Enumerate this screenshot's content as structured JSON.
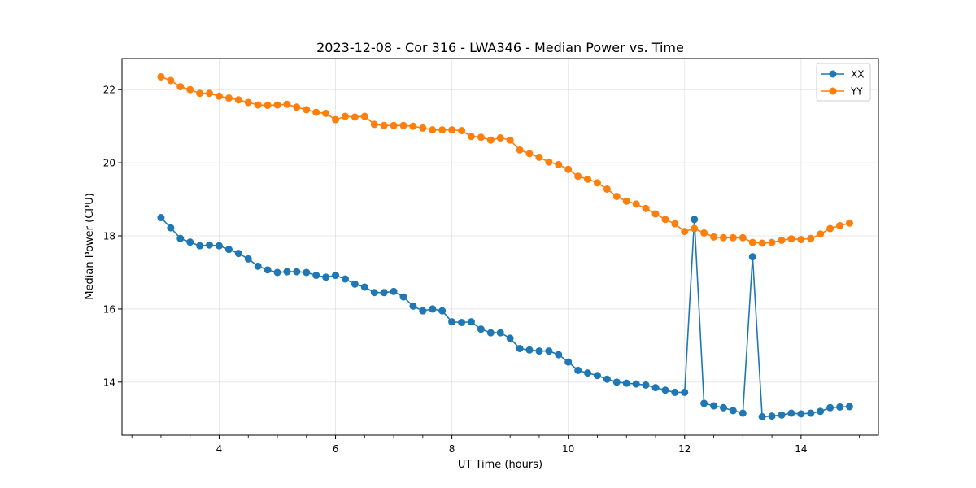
{
  "chart_data": {
    "type": "line",
    "title": "2023-12-08 - Cor 316 - LWA346 - Median Power vs. Time",
    "xlabel": "UT Time (hours)",
    "ylabel": "Median Power (CPU)",
    "xlim": [
      2.33,
      15.33
    ],
    "ylim": [
      12.55,
      22.85
    ],
    "xticks": [
      4,
      6,
      8,
      10,
      12,
      14
    ],
    "yticks": [
      14,
      16,
      18,
      20,
      22
    ],
    "grid": true,
    "legend_position": "top-right",
    "x": [
      3.0,
      3.167,
      3.333,
      3.5,
      3.667,
      3.833,
      4.0,
      4.167,
      4.333,
      4.5,
      4.667,
      4.833,
      5.0,
      5.167,
      5.333,
      5.5,
      5.667,
      5.833,
      6.0,
      6.167,
      6.333,
      6.5,
      6.667,
      6.833,
      7.0,
      7.167,
      7.333,
      7.5,
      7.667,
      7.833,
      8.0,
      8.167,
      8.333,
      8.5,
      8.667,
      8.833,
      9.0,
      9.167,
      9.333,
      9.5,
      9.667,
      9.833,
      10.0,
      10.167,
      10.333,
      10.5,
      10.667,
      10.833,
      11.0,
      11.167,
      11.333,
      11.5,
      11.667,
      11.833,
      12.0,
      12.167,
      12.333,
      12.5,
      12.667,
      12.833,
      13.0,
      13.167,
      13.333,
      13.5,
      13.667,
      13.833,
      14.0,
      14.167,
      14.333,
      14.5,
      14.667,
      14.833
    ],
    "series": [
      {
        "name": "XX",
        "color": "#1f77b4",
        "values": [
          18.5,
          18.22,
          17.93,
          17.83,
          17.73,
          17.75,
          17.73,
          17.63,
          17.52,
          17.37,
          17.17,
          17.07,
          17.0,
          17.02,
          17.02,
          17.0,
          16.92,
          16.87,
          16.92,
          16.82,
          16.68,
          16.6,
          16.45,
          16.45,
          16.48,
          16.33,
          16.08,
          15.95,
          16.0,
          15.95,
          15.65,
          15.63,
          15.65,
          15.45,
          15.35,
          15.35,
          15.2,
          14.92,
          14.88,
          14.85,
          14.85,
          14.75,
          14.55,
          14.32,
          14.25,
          14.18,
          14.08,
          14.0,
          13.97,
          13.95,
          13.92,
          13.85,
          13.78,
          13.72,
          13.72,
          18.45,
          13.42,
          13.35,
          13.3,
          13.22,
          13.15,
          17.43,
          13.05,
          13.07,
          13.1,
          13.15,
          13.13,
          13.15,
          13.2,
          13.3,
          13.32,
          13.33
        ]
      },
      {
        "name": "YY",
        "color": "#ff7f0e",
        "values": [
          22.35,
          22.25,
          22.08,
          22.0,
          21.9,
          21.9,
          21.82,
          21.77,
          21.72,
          21.65,
          21.58,
          21.57,
          21.58,
          21.6,
          21.52,
          21.45,
          21.38,
          21.35,
          21.18,
          21.27,
          21.25,
          21.27,
          21.05,
          21.02,
          21.02,
          21.02,
          21.0,
          20.95,
          20.9,
          20.9,
          20.9,
          20.88,
          20.72,
          20.7,
          20.62,
          20.68,
          20.62,
          20.35,
          20.25,
          20.15,
          20.02,
          19.95,
          19.82,
          19.63,
          19.55,
          19.45,
          19.28,
          19.08,
          18.95,
          18.87,
          18.75,
          18.6,
          18.45,
          18.33,
          18.12,
          18.2,
          18.08,
          17.97,
          17.95,
          17.95,
          17.95,
          17.82,
          17.8,
          17.82,
          17.88,
          17.92,
          17.9,
          17.93,
          18.05,
          18.2,
          18.28,
          18.35
        ]
      }
    ]
  }
}
